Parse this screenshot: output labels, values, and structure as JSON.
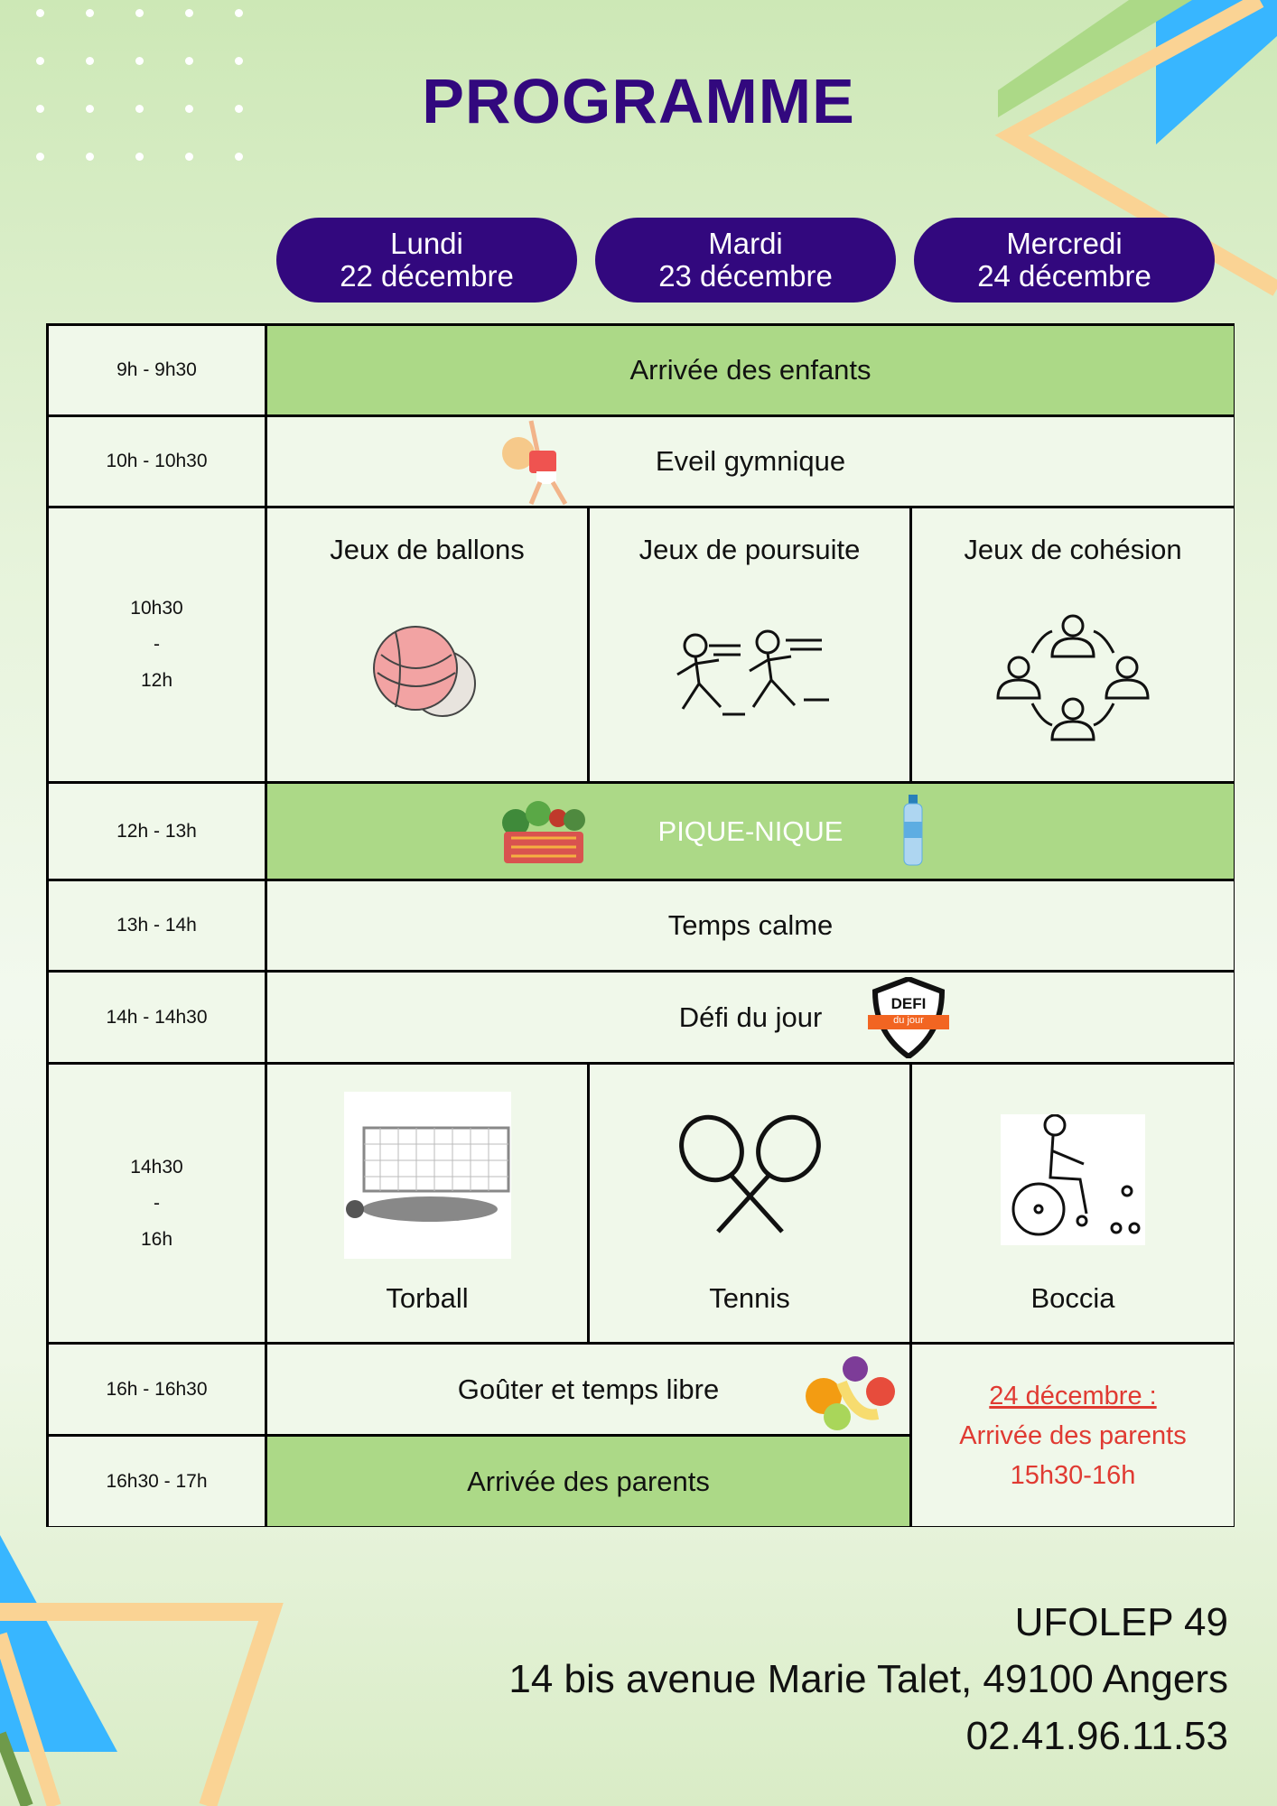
{
  "title": "PROGRAMME",
  "days": [
    {
      "day": "Lundi",
      "date": "22 décembre"
    },
    {
      "day": "Mardi",
      "date": "23 décembre"
    },
    {
      "day": "Mercredi",
      "date": "24 décembre"
    }
  ],
  "rows": {
    "r1": {
      "time": "9h - 9h30",
      "activity": "Arrivée des enfants"
    },
    "r2": {
      "time": "10h - 10h30",
      "activity": "Eveil gymnique"
    },
    "r3": {
      "time": [
        "10h30",
        "-",
        "12h"
      ],
      "activities": [
        "Jeux de ballons",
        "Jeux de poursuite",
        "Jeux de cohésion"
      ]
    },
    "r4": {
      "time": "12h - 13h",
      "activity": "PIQUE-NIQUE"
    },
    "r5": {
      "time": "13h - 14h",
      "activity": "Temps calme"
    },
    "r6": {
      "time": "14h - 14h30",
      "activity": "Défi du jour",
      "badge": "DEFI",
      "badge_sub": "du jour"
    },
    "r7": {
      "time": [
        "14h30",
        "-",
        "16h"
      ],
      "activities": [
        "Torball",
        "Tennis",
        "Boccia"
      ]
    },
    "r8": {
      "time": "16h - 16h30",
      "activity": "Goûter et temps libre"
    },
    "r9": {
      "time": "16h30 - 17h",
      "activity": "Arrivée des parents"
    }
  },
  "note": {
    "date": "24 décembre :",
    "line1": "Arrivée des parents",
    "line2": "15h30-16h"
  },
  "footer": {
    "org": "UFOLEP 49",
    "address": "14 bis avenue Marie Talet, 49100 Angers",
    "phone": "02.41.96.11.53"
  },
  "colors": {
    "primary": "#32087e",
    "green": "#acd987",
    "red": "#e03a32"
  }
}
